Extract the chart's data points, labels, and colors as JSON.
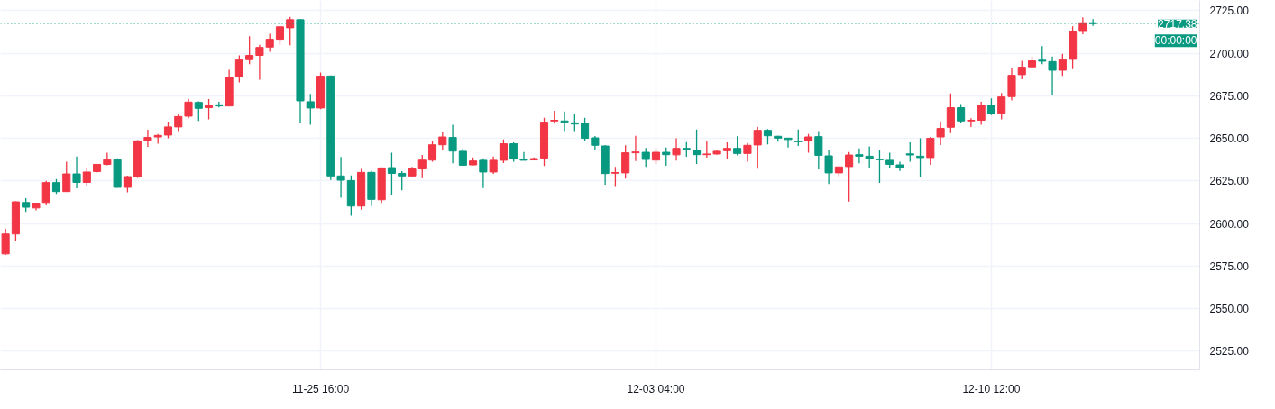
{
  "chart_data": {
    "type": "candlestick",
    "categories": [
      null,
      null,
      null,
      null,
      null,
      null,
      null,
      null,
      null,
      null,
      null,
      null,
      null,
      null,
      null,
      null,
      null,
      null,
      null,
      null,
      null,
      null,
      null,
      null,
      null,
      null,
      null,
      null,
      null,
      null,
      null,
      "11-25 16:00",
      null,
      null,
      null,
      null,
      null,
      null,
      null,
      null,
      null,
      null,
      null,
      null,
      null,
      null,
      null,
      null,
      null,
      null,
      null,
      null,
      null,
      null,
      null,
      null,
      null,
      null,
      null,
      null,
      null,
      null,
      null,
      null,
      "12-03 04:00",
      null,
      null,
      null,
      null,
      null,
      null,
      null,
      null,
      null,
      null,
      null,
      null,
      null,
      null,
      null,
      null,
      null,
      null,
      null,
      null,
      null,
      null,
      null,
      null,
      null,
      null,
      null,
      null,
      null,
      null,
      null,
      null,
      "12-10 12:00",
      null,
      null,
      null,
      null,
      null,
      null,
      null,
      null,
      null,
      null,
      null,
      null,
      null,
      null,
      null,
      null,
      null,
      null,
      null,
      null
    ],
    "ohlc": [
      [
        2582.1,
        2596.8,
        2581.5,
        2593.8
      ],
      [
        2593.8,
        2613.0,
        2589.9,
        2612.7
      ],
      [
        2612.3,
        2614.8,
        2606.7,
        2609.5
      ],
      [
        2609.1,
        2612.2,
        2607.7,
        2611.9
      ],
      [
        2612.3,
        2625.0,
        2610.6,
        2624.0
      ],
      [
        2624.0,
        2626.1,
        2617.3,
        2618.7
      ],
      [
        2618.7,
        2636.2,
        2618.5,
        2629.1
      ],
      [
        2629.1,
        2639.3,
        2620.6,
        2624.1
      ],
      [
        2624.1,
        2632.6,
        2622.0,
        2630.2
      ],
      [
        2630.5,
        2635.0,
        2630.0,
        2634.7
      ],
      [
        2634.7,
        2641.5,
        2634.2,
        2637.4
      ],
      [
        2637.4,
        2638.3,
        2621.0,
        2621.2
      ],
      [
        2621.2,
        2628.0,
        2618.3,
        2627.5
      ],
      [
        2627.5,
        2649.0,
        2626.8,
        2648.5
      ],
      [
        2648.7,
        2655.1,
        2645.0,
        2650.5
      ],
      [
        2650.8,
        2652.6,
        2646.9,
        2651.7
      ],
      [
        2651.9,
        2659.8,
        2650.0,
        2656.7
      ],
      [
        2656.7,
        2664.2,
        2654.3,
        2662.8
      ],
      [
        2663.0,
        2673.2,
        2661.8,
        2671.3
      ],
      [
        2671.1,
        2671.7,
        2660.2,
        2667.6
      ],
      [
        2668.0,
        2673.1,
        2661.1,
        2669.4
      ],
      [
        2669.7,
        2671.5,
        2668.1,
        2669.0
      ],
      [
        2669.0,
        2690.2,
        2668.8,
        2685.8
      ],
      [
        2686.1,
        2698.7,
        2682.9,
        2696.0
      ],
      [
        2696.2,
        2710.0,
        2693.5,
        2698.7
      ],
      [
        2698.7,
        2704.9,
        2684.4,
        2703.4
      ],
      [
        2703.6,
        2711.4,
        2700.8,
        2708.2
      ],
      [
        2708.2,
        2716.0,
        2705.0,
        2715.5
      ],
      [
        2714.9,
        2721.3,
        2704.7,
        2719.7
      ],
      [
        2719.7,
        2720.0,
        2659.1,
        2672.0
      ],
      [
        2671.5,
        2676.1,
        2658.0,
        2667.8
      ],
      [
        2667.8,
        2688.6,
        2667.1,
        2686.5
      ],
      [
        2686.6,
        2687.0,
        2625.6,
        2627.9
      ],
      [
        2627.9,
        2639.0,
        2615.1,
        2625.4
      ],
      [
        2625.2,
        2628.2,
        2604.5,
        2610.2
      ],
      [
        2610.2,
        2632.0,
        2608.1,
        2630.0
      ],
      [
        2630.0,
        2630.9,
        2610.2,
        2614.1
      ],
      [
        2613.9,
        2633.0,
        2612.0,
        2632.6
      ],
      [
        2632.8,
        2641.5,
        2616.4,
        2629.4
      ],
      [
        2629.4,
        2630.7,
        2619.4,
        2627.9
      ],
      [
        2627.9,
        2633.2,
        2627.0,
        2632.0
      ],
      [
        2632.0,
        2640.2,
        2626.6,
        2637.2
      ],
      [
        2637.2,
        2648.2,
        2636.3,
        2646.2
      ],
      [
        2646.2,
        2653.5,
        2643.2,
        2650.8
      ],
      [
        2650.5,
        2657.9,
        2635.3,
        2642.5
      ],
      [
        2642.4,
        2644.1,
        2633.7,
        2634.2
      ],
      [
        2634.4,
        2638.8,
        2634.2,
        2636.7
      ],
      [
        2637.1,
        2638.3,
        2620.8,
        2630.2
      ],
      [
        2630.2,
        2639.3,
        2629.1,
        2637.1
      ],
      [
        2637.1,
        2649.4,
        2635.5,
        2646.8
      ],
      [
        2646.8,
        2647.7,
        2636.2,
        2637.9
      ],
      [
        2637.6,
        2642.0,
        2637.0,
        2637.1
      ],
      [
        2637.3,
        2638.8,
        2637.1,
        2638.1
      ],
      [
        2638.4,
        2662.1,
        2633.7,
        2659.5
      ],
      [
        2660.2,
        2666.2,
        2658.6,
        2660.6
      ],
      [
        2660.2,
        2665.8,
        2654.3,
        2659.5
      ],
      [
        2659.1,
        2664.6,
        2654.2,
        2658.4
      ],
      [
        2658.8,
        2662.0,
        2648.5,
        2650.0
      ],
      [
        2650.3,
        2651.4,
        2642.9,
        2645.9
      ],
      [
        2645.5,
        2646.0,
        2622.8,
        2629.3
      ],
      [
        2629.5,
        2633.2,
        2621.5,
        2629.9
      ],
      [
        2629.7,
        2645.9,
        2626.3,
        2641.5
      ],
      [
        2641.5,
        2651.5,
        2636.7,
        2642.0
      ],
      [
        2641.8,
        2644.3,
        2633.2,
        2637.6
      ],
      [
        2637.2,
        2644.1,
        2635.0,
        2641.8
      ],
      [
        2641.8,
        2644.6,
        2633.9,
        2640.4
      ],
      [
        2640.3,
        2650.0,
        2636.9,
        2644.1
      ],
      [
        2644.1,
        2647.8,
        2639.2,
        2643.6
      ],
      [
        2642.9,
        2655.2,
        2635.0,
        2640.4
      ],
      [
        2640.4,
        2648.7,
        2638.7,
        2640.8
      ],
      [
        2640.8,
        2643.2,
        2640.3,
        2642.4
      ],
      [
        2642.7,
        2647.7,
        2637.6,
        2644.1
      ],
      [
        2644.1,
        2651.2,
        2640.0,
        2641.1
      ],
      [
        2641.1,
        2647.3,
        2636.3,
        2645.9
      ],
      [
        2646.1,
        2656.8,
        2632.1,
        2654.7
      ],
      [
        2654.7,
        2655.4,
        2646.4,
        2651.5
      ],
      [
        2651.2,
        2651.5,
        2648.0,
        2650.1
      ],
      [
        2650.1,
        2650.3,
        2644.6,
        2649.3
      ],
      [
        2648.4,
        2655.2,
        2645.5,
        2648.0
      ],
      [
        2648.5,
        2652.6,
        2641.6,
        2650.8
      ],
      [
        2651.0,
        2654.2,
        2631.8,
        2640.0
      ],
      [
        2639.7,
        2642.9,
        2623.1,
        2629.7
      ],
      [
        2629.7,
        2633.5,
        2627.7,
        2633.2
      ],
      [
        2633.4,
        2642.0,
        2612.9,
        2640.2
      ],
      [
        2640.4,
        2644.1,
        2635.3,
        2639.5
      ],
      [
        2639.5,
        2645.3,
        2632.3,
        2638.1
      ],
      [
        2637.8,
        2642.9,
        2623.8,
        2637.4
      ],
      [
        2637.1,
        2641.5,
        2632.6,
        2634.7
      ],
      [
        2634.4,
        2636.2,
        2630.9,
        2632.8
      ],
      [
        2640.9,
        2647.7,
        2636.3,
        2640.2
      ],
      [
        2639.5,
        2650.0,
        2627.3,
        2638.7
      ],
      [
        2638.7,
        2650.8,
        2634.4,
        2650.0
      ],
      [
        2650.8,
        2660.0,
        2646.1,
        2655.8
      ],
      [
        2656.5,
        2676.3,
        2653.1,
        2668.0
      ],
      [
        2668.0,
        2670.2,
        2658.8,
        2660.2
      ],
      [
        2660.2,
        2661.8,
        2656.7,
        2660.6
      ],
      [
        2660.6,
        2671.5,
        2657.9,
        2669.5
      ],
      [
        2669.5,
        2673.4,
        2663.6,
        2664.6
      ],
      [
        2664.8,
        2676.6,
        2661.2,
        2674.3
      ],
      [
        2674.5,
        2691.6,
        2672.2,
        2687.0
      ],
      [
        2687.4,
        2695.5,
        2684.7,
        2691.8
      ],
      [
        2692.0,
        2698.1,
        2690.9,
        2695.5
      ],
      [
        2695.9,
        2704.1,
        2693.5,
        2695.3
      ],
      [
        2695.1,
        2698.0,
        2675.2,
        2690.0
      ],
      [
        2690.0,
        2699.6,
        2686.7,
        2696.2
      ],
      [
        2696.4,
        2715.8,
        2690.6,
        2713.0
      ],
      [
        2713.3,
        2721.1,
        2711.2,
        2717.9
      ],
      [
        2717.9,
        2720.0,
        2716.0,
        2717.38
      ],
      null,
      null,
      null,
      null,
      null,
      null,
      null,
      null,
      null,
      null
    ],
    "colors": [
      "#f23645",
      "#f23645",
      "#089981",
      "#f23645",
      "#f23645",
      "#089981",
      "#f23645",
      "#089981",
      "#f23645",
      "#f23645",
      "#f23645",
      "#089981",
      "#f23645",
      "#f23645",
      "#f23645",
      "#f23645",
      "#f23645",
      "#f23645",
      "#f23645",
      "#089981",
      "#f23645",
      "#089981",
      "#f23645",
      "#f23645",
      "#f23645",
      "#f23645",
      "#f23645",
      "#f23645",
      "#f23645",
      "#089981",
      "#089981",
      "#f23645",
      "#089981",
      "#089981",
      "#089981",
      "#f23645",
      "#089981",
      "#f23645",
      "#089981",
      "#089981",
      "#f23645",
      "#f23645",
      "#f23645",
      "#f23645",
      "#089981",
      "#089981",
      "#f23645",
      "#089981",
      "#f23645",
      "#f23645",
      "#089981",
      "#089981",
      "#f23645",
      "#f23645",
      "#f23645",
      "#089981",
      "#089981",
      "#089981",
      "#089981",
      "#089981",
      "#f23645",
      "#f23645",
      "#f23645",
      "#089981",
      "#f23645",
      "#089981",
      "#f23645",
      "#089981",
      "#089981",
      "#f23645",
      "#f23645",
      "#f23645",
      "#089981",
      "#f23645",
      "#f23645",
      "#089981",
      "#089981",
      "#089981",
      "#089981",
      "#f23645",
      "#089981",
      "#089981",
      "#f23645",
      "#f23645",
      "#089981",
      "#089981",
      "#089981",
      "#089981",
      "#089981",
      "#089981",
      "#089981",
      "#f23645",
      "#f23645",
      "#f23645",
      "#089981",
      "#f23645",
      "#f23645",
      "#089981",
      "#f23645",
      "#f23645",
      "#f23645",
      "#f23645",
      "#089981",
      "#089981",
      "#f23645",
      "#f23645",
      "#f23645",
      "#089981",
      null,
      null,
      null,
      null,
      null,
      null,
      null,
      null,
      null,
      null
    ],
    "ylim": [
      2514,
      2731
    ],
    "yticks": [
      {
        "value": 2525,
        "label": "2525.00"
      },
      {
        "value": 2550,
        "label": "2550.00"
      },
      {
        "value": 2575,
        "label": "2575.00"
      },
      {
        "value": 2600,
        "label": "2600.00"
      },
      {
        "value": 2625,
        "label": "2625.00"
      },
      {
        "value": 2650,
        "label": "2650.00"
      },
      {
        "value": 2675,
        "label": "2675.00"
      },
      {
        "value": 2700,
        "label": "2700.00"
      },
      {
        "value": 2725,
        "label": "2725.00"
      }
    ],
    "ref_lines": [
      {
        "axis": "y",
        "value": 2717.38,
        "label": "2717.38",
        "color": "#089981",
        "line_style": "dotted"
      }
    ],
    "annotations": [
      "00:00:00"
    ],
    "grid": true
  }
}
